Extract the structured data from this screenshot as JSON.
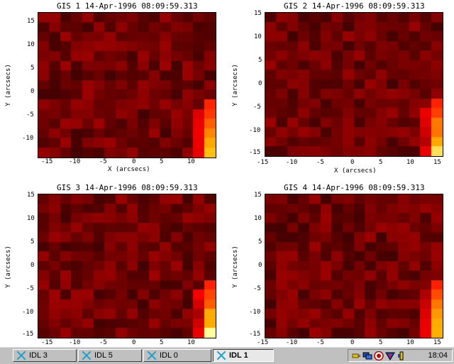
{
  "chart_data": [
    {
      "type": "heatmap",
      "title": "GIS 1 14-Apr-1996 08:09:59.313",
      "xlabel": "X (arcsecs)",
      "ylabel": "Y (arcsecs)",
      "xlim": [
        -16.5,
        14.5
      ],
      "ylim": [
        -14,
        16.5
      ],
      "x_ticks": [
        -15,
        -10,
        -5,
        0,
        5,
        10
      ],
      "y_ticks": [
        15,
        10,
        5,
        0,
        -5,
        -10
      ],
      "colormap": "red-temperature",
      "grid": false
    },
    {
      "type": "heatmap",
      "title": "GIS 2 14-Apr-1996 08:09:59.313",
      "xlabel": "X (arcsecs)",
      "ylabel": "Y (arcsecs)",
      "xlim": [
        -15,
        15
      ],
      "ylim": [
        -15,
        16
      ],
      "x_ticks": [
        -15,
        -10,
        -5,
        0,
        5,
        10,
        15
      ],
      "y_ticks": [
        15,
        10,
        5,
        0,
        -5,
        -10,
        -15
      ],
      "colormap": "red-temperature",
      "grid": false
    },
    {
      "type": "heatmap",
      "title": "GIS 3 14-Apr-1996 08:09:59.313",
      "xlabel": "",
      "ylabel": "Y (arcsecs)",
      "xlim": [
        -16.5,
        14.5
      ],
      "ylim": [
        -15,
        16
      ],
      "x_ticks": [
        -15,
        -10,
        -5,
        0,
        5,
        10
      ],
      "y_ticks": [
        15,
        10,
        5,
        0,
        -5,
        -10,
        -15
      ],
      "colormap": "red-temperature",
      "grid": false
    },
    {
      "type": "heatmap",
      "title": "GIS 4 14-Apr-1996 08:09:59.313",
      "xlabel": "",
      "ylabel": "Y (arcsecs)",
      "xlim": [
        -15,
        15
      ],
      "ylim": [
        -15,
        16
      ],
      "x_ticks": [
        -15,
        -10,
        -5,
        0,
        5,
        10,
        15
      ],
      "y_ticks": [
        15,
        10,
        5,
        0,
        -5,
        -10,
        -15
      ],
      "colormap": "red-temperature",
      "grid": false
    }
  ],
  "taskbar": {
    "tasks": [
      {
        "label": "IDL 3"
      },
      {
        "label": "IDL 5"
      },
      {
        "label": "IDL 0"
      },
      {
        "label": "IDL 1"
      }
    ],
    "clock": "18:04"
  }
}
